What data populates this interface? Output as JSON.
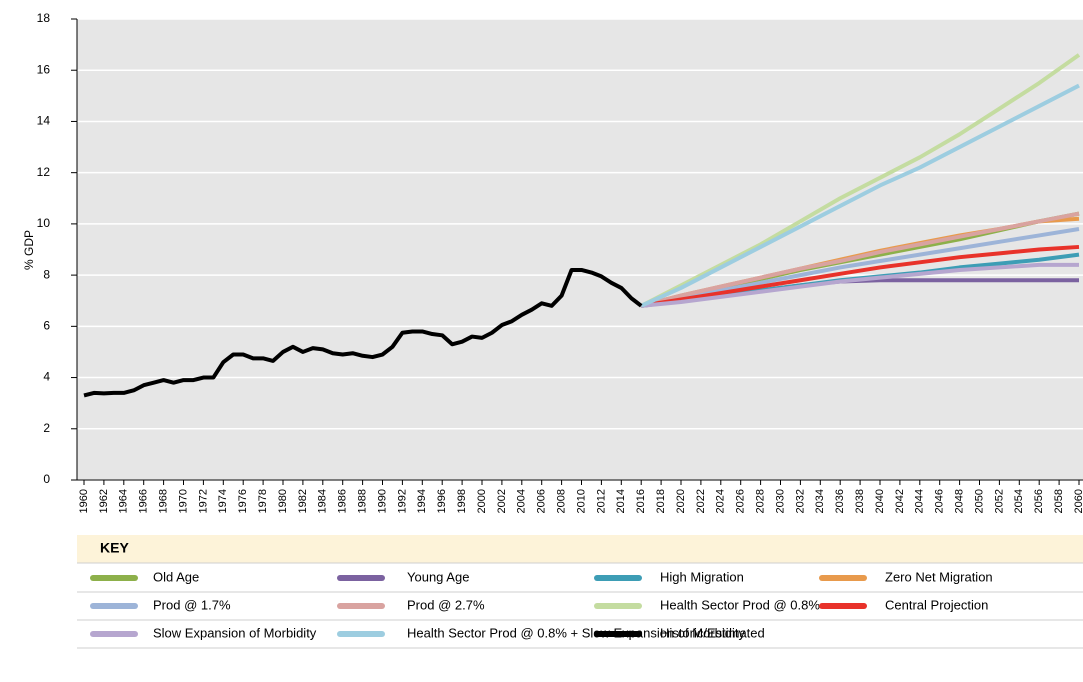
{
  "chart_data": {
    "type": "line",
    "y_label": "% GDP",
    "legend_title": "KEY",
    "xlim": [
      1960,
      2060
    ],
    "xticks": [
      1960,
      1962,
      1964,
      1966,
      1968,
      1970,
      1972,
      1974,
      1976,
      1978,
      1980,
      1982,
      1984,
      1986,
      1988,
      1990,
      1992,
      1994,
      1996,
      1998,
      2000,
      2002,
      2004,
      2006,
      2008,
      2010,
      2012,
      2014,
      2016,
      2018,
      2020,
      2022,
      2024,
      2026,
      2028,
      2030,
      2032,
      2034,
      2036,
      2038,
      2040,
      2042,
      2044,
      2046,
      2048,
      2050,
      2052,
      2054,
      2056,
      2058,
      2060
    ],
    "ylim": [
      0,
      18
    ],
    "yticks": [
      0,
      2,
      4,
      6,
      8,
      10,
      12,
      14,
      16,
      18
    ],
    "grid": true,
    "series": [
      {
        "name": "Old Age",
        "color": "#8db04a",
        "x": [
          2016,
          2020,
          2024,
          2028,
          2032,
          2036,
          2040,
          2044,
          2048,
          2052,
          2056,
          2060
        ],
        "values": [
          6.8,
          7.15,
          7.5,
          7.85,
          8.2,
          8.5,
          8.8,
          9.1,
          9.4,
          9.75,
          10.1,
          10.4
        ]
      },
      {
        "name": "Young Age",
        "color": "#7b62a0",
        "x": [
          2016,
          2020,
          2024,
          2028,
          2032,
          2036,
          2040,
          2044,
          2048,
          2052,
          2056,
          2060
        ],
        "values": [
          6.8,
          7.0,
          7.2,
          7.4,
          7.6,
          7.75,
          7.8,
          7.8,
          7.8,
          7.8,
          7.8,
          7.8
        ]
      },
      {
        "name": "High Migration",
        "color": "#3d9db5",
        "x": [
          2016,
          2020,
          2024,
          2028,
          2032,
          2036,
          2040,
          2044,
          2048,
          2052,
          2056,
          2060
        ],
        "values": [
          6.8,
          7.0,
          7.2,
          7.4,
          7.6,
          7.8,
          7.95,
          8.1,
          8.3,
          8.45,
          8.6,
          8.8
        ]
      },
      {
        "name": "Zero Net Migration",
        "color": "#e89a4c",
        "x": [
          2016,
          2020,
          2024,
          2028,
          2032,
          2036,
          2040,
          2044,
          2048,
          2052,
          2056,
          2060
        ],
        "values": [
          6.8,
          7.2,
          7.55,
          7.9,
          8.25,
          8.6,
          8.95,
          9.25,
          9.55,
          9.8,
          10.1,
          10.2
        ]
      },
      {
        "name": "Prod @ 1.7%",
        "color": "#9db4d8",
        "x": [
          2016,
          2020,
          2024,
          2028,
          2032,
          2036,
          2040,
          2044,
          2048,
          2052,
          2056,
          2060
        ],
        "values": [
          6.8,
          7.1,
          7.4,
          7.7,
          8.0,
          8.3,
          8.55,
          8.8,
          9.05,
          9.3,
          9.55,
          9.8
        ]
      },
      {
        "name": "Prod @ 2.7%",
        "color": "#d9a3a0",
        "x": [
          2016,
          2020,
          2024,
          2028,
          2032,
          2036,
          2040,
          2044,
          2048,
          2052,
          2056,
          2060
        ],
        "values": [
          6.8,
          7.2,
          7.55,
          7.9,
          8.25,
          8.55,
          8.9,
          9.2,
          9.5,
          9.8,
          10.1,
          10.4
        ]
      },
      {
        "name": "Health Sector Prod @ 0.8%",
        "color": "#c4dca0",
        "x": [
          2016,
          2020,
          2024,
          2028,
          2032,
          2036,
          2040,
          2044,
          2048,
          2052,
          2056,
          2060
        ],
        "values": [
          6.8,
          7.6,
          8.4,
          9.2,
          10.1,
          11.0,
          11.8,
          12.6,
          13.5,
          14.5,
          15.5,
          16.6
        ]
      },
      {
        "name": "Central Projection",
        "color": "#e8322a",
        "x": [
          2016,
          2020,
          2024,
          2028,
          2032,
          2036,
          2040,
          2044,
          2048,
          2052,
          2056,
          2060
        ],
        "values": [
          6.8,
          7.05,
          7.3,
          7.55,
          7.8,
          8.05,
          8.3,
          8.5,
          8.7,
          8.85,
          9.0,
          9.1
        ]
      },
      {
        "name": "Slow Expansion of Morbidity",
        "color": "#b6a6cf",
        "x": [
          2016,
          2020,
          2024,
          2028,
          2032,
          2036,
          2040,
          2044,
          2048,
          2052,
          2056,
          2060
        ],
        "values": [
          6.8,
          6.95,
          7.15,
          7.35,
          7.55,
          7.75,
          7.9,
          8.05,
          8.2,
          8.3,
          8.4,
          8.4
        ]
      },
      {
        "name": "Health Sector Prod @ 0.8% + Slow Expansion of Morbidity",
        "color": "#9dcde0",
        "x": [
          2016,
          2020,
          2024,
          2028,
          2032,
          2036,
          2040,
          2044,
          2048,
          2052,
          2056,
          2060
        ],
        "values": [
          6.8,
          7.5,
          8.3,
          9.1,
          9.9,
          10.7,
          11.5,
          12.2,
          13.0,
          13.8,
          14.6,
          15.4
        ]
      },
      {
        "name": "Historic/Estimated",
        "color": "#000000",
        "x": [
          1960,
          1961,
          1962,
          1963,
          1964,
          1965,
          1966,
          1967,
          1968,
          1969,
          1970,
          1971,
          1972,
          1973,
          1974,
          1975,
          1976,
          1977,
          1978,
          1979,
          1980,
          1981,
          1982,
          1983,
          1984,
          1985,
          1986,
          1987,
          1988,
          1989,
          1990,
          1991,
          1992,
          1993,
          1994,
          1995,
          1996,
          1997,
          1998,
          1999,
          2000,
          2001,
          2002,
          2003,
          2004,
          2005,
          2006,
          2007,
          2008,
          2009,
          2010,
          2011,
          2012,
          2013,
          2014,
          2015,
          2016
        ],
        "values": [
          3.3,
          3.4,
          3.38,
          3.4,
          3.4,
          3.5,
          3.7,
          3.8,
          3.9,
          3.8,
          3.9,
          3.9,
          4.0,
          4.0,
          4.6,
          4.9,
          4.9,
          4.75,
          4.75,
          4.65,
          5.0,
          5.2,
          5.0,
          5.15,
          5.1,
          4.95,
          4.9,
          4.95,
          4.85,
          4.8,
          4.9,
          5.2,
          5.75,
          5.8,
          5.8,
          5.7,
          5.65,
          5.3,
          5.4,
          5.6,
          5.55,
          5.75,
          6.05,
          6.2,
          6.45,
          6.65,
          6.9,
          6.8,
          7.2,
          8.2,
          8.2,
          8.1,
          7.95,
          7.7,
          7.5,
          7.1,
          6.8
        ]
      }
    ]
  }
}
